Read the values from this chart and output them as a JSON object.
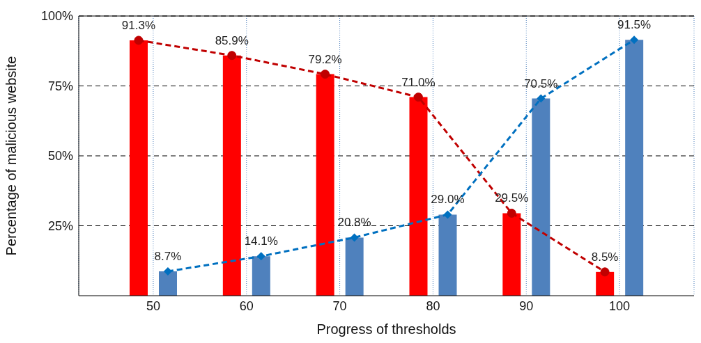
{
  "chart_data": {
    "type": "bar",
    "xlabel": "Progress of thresholds",
    "ylabel": "Percentage of malicious website",
    "categories": [
      "50",
      "60",
      "70",
      "80",
      "90",
      "100"
    ],
    "series": [
      {
        "color": "#ff0000",
        "values": [
          91.3,
          85.9,
          79.2,
          71.0,
          29.5,
          8.5
        ]
      },
      {
        "color": "#4f81bd",
        "values": [
          8.7,
          14.1,
          20.8,
          29.0,
          70.5,
          91.5
        ]
      },
      {
        "type": "line",
        "color": "#c00000",
        "marker": "circle",
        "line_style": "dashed",
        "values": [
          91.3,
          85.9,
          79.2,
          71.0,
          29.5,
          8.5
        ],
        "value_labels": [
          "91.3%",
          "85.9%",
          "79.2%",
          "71.0%",
          "29.5%",
          "8.5%"
        ]
      },
      {
        "type": "line",
        "color": "#0070c0",
        "marker": "diamond",
        "line_style": "dashed",
        "values": [
          8.7,
          14.1,
          20.8,
          29.0,
          70.5,
          91.5
        ],
        "value_labels": [
          "8.7%",
          "14.1%",
          "20.8%",
          "29.0%",
          "70.5%",
          "91.5%"
        ]
      }
    ],
    "ylim": [
      0,
      100
    ],
    "yticks": [
      {
        "value": 25,
        "label": "25%"
      },
      {
        "value": 50,
        "label": "50%"
      },
      {
        "value": 75,
        "label": "75%"
      },
      {
        "value": 100,
        "label": "100%"
      }
    ],
    "grid": true
  }
}
